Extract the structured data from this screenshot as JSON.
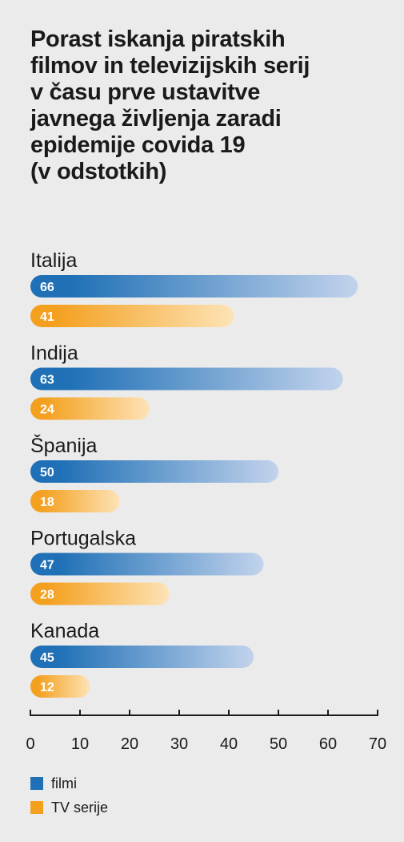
{
  "chart_data": {
    "type": "bar",
    "orientation": "horizontal",
    "title_lines": [
      "Porast iskanja piratskih",
      "filmov in televizijskih serij",
      "v času prve ustavitve",
      "javnega življenja zaradi",
      "epidemije covida 19",
      "(v odstotkih)"
    ],
    "categories": [
      "Italija",
      "Indija",
      "Španija",
      "Portugalska",
      "Kanada"
    ],
    "series": [
      {
        "name": "filmi",
        "values": [
          66,
          63,
          50,
          47,
          45
        ],
        "color": "#1f70b6",
        "color_end": "#c2d3ec"
      },
      {
        "name": "TV serije",
        "values": [
          41,
          24,
          18,
          28,
          12
        ],
        "color": "#f4a01f",
        "color_end": "#fde3b6"
      }
    ],
    "xlim": [
      0,
      70
    ],
    "xticks": [
      0,
      10,
      20,
      30,
      40,
      50,
      60,
      70
    ],
    "grid": false,
    "legend_position": "bottom-left"
  }
}
